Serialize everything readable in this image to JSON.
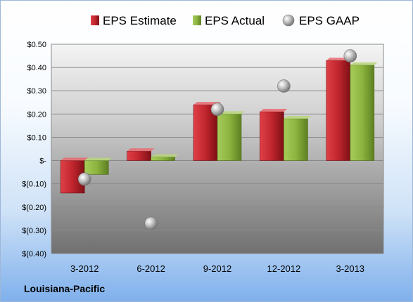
{
  "chart_data": {
    "type": "bar",
    "categories": [
      "3-2012",
      "6-2012",
      "9-2012",
      "12-2012",
      "3-2013"
    ],
    "series": [
      {
        "name": "EPS Estimate",
        "values": [
          -0.14,
          0.04,
          0.24,
          0.21,
          0.43
        ],
        "color": "#c0252d"
      },
      {
        "name": "EPS Actual",
        "values": [
          -0.06,
          0.015,
          0.2,
          0.18,
          0.41
        ],
        "color": "#8cb43f"
      },
      {
        "name": "EPS GAAP",
        "values": [
          -0.08,
          -0.27,
          0.22,
          0.32,
          0.45
        ],
        "color": "#c8c8c8",
        "kind": "scatter"
      }
    ],
    "ylim": [
      -0.4,
      0.5
    ],
    "yticks": [
      0.5,
      0.4,
      0.3,
      0.2,
      0.1,
      0,
      -0.1,
      -0.2,
      -0.3,
      -0.4
    ],
    "ytick_labels": [
      "$0.50",
      "$0.40",
      "$0.30",
      "$0.20",
      "$0.10",
      "$-",
      "$(0.10)",
      "$(0.20)",
      "$(0.30)",
      "$(0.40)"
    ],
    "grid": true,
    "legend_position": "top"
  },
  "footer": {
    "company": "Louisiana-Pacific"
  }
}
